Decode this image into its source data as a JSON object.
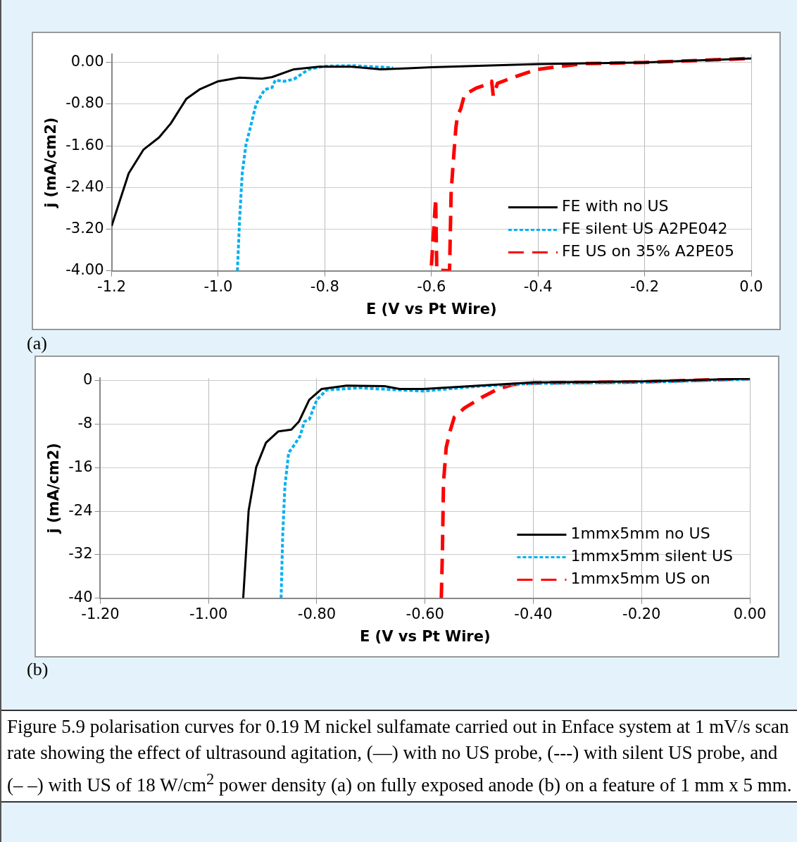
{
  "chart_data": [
    {
      "type": "line",
      "xlabel": "E (V vs Pt Wire)",
      "ylabel": "j (mA/cm2)",
      "xlim": [
        -1.2,
        0.0
      ],
      "ylim": [
        -4.0,
        0.16
      ],
      "xticks": [
        {
          "value": -1.2,
          "label": "-1.2"
        },
        {
          "value": -1.0,
          "label": "-1.0"
        },
        {
          "value": -0.8,
          "label": "-0.8"
        },
        {
          "value": -0.6,
          "label": "-0.6"
        },
        {
          "value": -0.4,
          "label": "-0.4"
        },
        {
          "value": -0.2,
          "label": "-0.2"
        },
        {
          "value": 0.0,
          "label": "0.0"
        }
      ],
      "yticks": [
        {
          "value": -4.0,
          "label": "-4.00"
        },
        {
          "value": -3.2,
          "label": "-3.20"
        },
        {
          "value": -2.4,
          "label": "-2.40"
        },
        {
          "value": -1.6,
          "label": "-1.60"
        },
        {
          "value": -0.8,
          "label": "-0.80"
        },
        {
          "value": 0.0,
          "label": "0.00"
        }
      ],
      "grid": true,
      "legend": "bottom right",
      "marker": "none",
      "annotations": [
        "(a)"
      ],
      "series": [
        {
          "name": "FE with no US",
          "color": "#000000",
          "line_style": "solid",
          "x": [
            -1.2,
            -1.168,
            -1.14,
            -1.111,
            -1.089,
            -1.06,
            -1.034,
            -1.0,
            -0.96,
            -0.918,
            -0.899,
            -0.858,
            -0.811,
            -0.75,
            -0.695,
            -0.644,
            -0.6,
            -0.4,
            -0.2,
            0.0
          ],
          "values": [
            -3.14,
            -2.13,
            -1.67,
            -1.44,
            -1.17,
            -0.7,
            -0.51,
            -0.36,
            -0.29,
            -0.31,
            -0.28,
            -0.13,
            -0.08,
            -0.08,
            -0.13,
            -0.11,
            -0.09,
            -0.03,
            0.0,
            0.08
          ]
        },
        {
          "name": "FE silent US A2PE042",
          "color": "#00b0f0",
          "line_style": "dotted",
          "x": [
            -0.964,
            -0.96,
            -0.955,
            -0.948,
            -0.941,
            -0.929,
            -0.913,
            -0.899,
            -0.893,
            -0.876,
            -0.858,
            -0.83,
            -0.801,
            -0.75,
            -0.672
          ],
          "values": [
            -4.0,
            -3.04,
            -2.13,
            -1.58,
            -1.3,
            -0.8,
            -0.52,
            -0.48,
            -0.34,
            -0.36,
            -0.32,
            -0.13,
            -0.07,
            -0.06,
            -0.1
          ]
        },
        {
          "name": "FE US on 35% A2PE05",
          "color": "#ff0000",
          "line_style": "dashed",
          "x": [
            -0.6,
            -0.592,
            -0.59,
            -0.566,
            -0.563,
            -0.558,
            -0.554,
            -0.551,
            -0.545,
            -0.538,
            -0.516,
            -0.498,
            -0.487,
            -0.484,
            -0.476,
            -0.453,
            -0.422,
            -0.4,
            -0.356,
            -0.31,
            -0.2,
            0.0
          ],
          "values": [
            -3.9,
            -2.61,
            -3.99,
            -4.0,
            -2.48,
            -1.77,
            -1.24,
            -1.02,
            -0.89,
            -0.62,
            -0.49,
            -0.43,
            -0.36,
            -0.64,
            -0.4,
            -0.31,
            -0.2,
            -0.13,
            -0.07,
            -0.02,
            0.0,
            0.08
          ]
        }
      ]
    },
    {
      "type": "line",
      "xlabel": "E (V vs Pt Wire)",
      "ylabel": "j (mA/cm2)",
      "xlim": [
        -1.2,
        0.0
      ],
      "ylim": [
        -40,
        0.5
      ],
      "xticks": [
        {
          "value": -1.2,
          "label": "-1.20"
        },
        {
          "value": -1.0,
          "label": "-1.00"
        },
        {
          "value": -0.8,
          "label": "-0.80"
        },
        {
          "value": -0.6,
          "label": "-0.60"
        },
        {
          "value": -0.4,
          "label": "-0.40"
        },
        {
          "value": -0.2,
          "label": "-0.20"
        },
        {
          "value": 0.0,
          "label": "0.00"
        }
      ],
      "yticks": [
        -40,
        -32,
        -24,
        -16,
        -8,
        0
      ],
      "grid": true,
      "legend": "bottom right",
      "marker": "none",
      "annotations": [
        "(b)",
        "Figure 5.9 polarisation curves for 0.19 M nickel sulfamate carried out in Enface system at 1 mV/s scan rate showing the effect of ultrasound agitation, (—) with no US probe, (---) with silent US probe, and (– –) with US of 18 W/cm$^{2}$ power density (a) on fully exposed anode (b) on a feature of 1 mm x 5 mm."
      ],
      "series": [
        {
          "name": "1mmx5mm no US",
          "color": "#000000",
          "line_style": "solid",
          "x": [
            -0.936,
            -0.926,
            -0.912,
            -0.894,
            -0.871,
            -0.847,
            -0.833,
            -0.814,
            -0.791,
            -0.745,
            -0.675,
            -0.647,
            -0.603,
            -0.5,
            -0.4,
            -0.199,
            0.0
          ],
          "values": [
            -40.0,
            -23.9,
            -15.9,
            -11.4,
            -9.3,
            -9.0,
            -7.5,
            -3.5,
            -1.5,
            -0.9,
            -1.0,
            -1.5,
            -1.5,
            -0.9,
            -0.3,
            -0.1,
            0.4
          ]
        },
        {
          "name": "1mmx5mm silent US",
          "color": "#00b0f0",
          "line_style": "dotted",
          "x": [
            -0.866,
            -0.863,
            -0.859,
            -0.852,
            -0.845,
            -0.831,
            -0.823,
            -0.814,
            -0.8,
            -0.782,
            -0.721,
            -0.647,
            -0.603,
            -0.5,
            -0.4,
            -0.2,
            0.0
          ],
          "values": [
            -40.0,
            -28.3,
            -19.4,
            -13.2,
            -12.3,
            -10.2,
            -7.5,
            -7.1,
            -3.5,
            -1.7,
            -1.3,
            -1.7,
            -1.9,
            -1.0,
            -0.5,
            -0.3,
            0.3
          ]
        },
        {
          "name": "1mmx5mm US on",
          "color": "#ff0000",
          "line_style": "dashed",
          "x": [
            -0.57,
            -0.568,
            -0.566,
            -0.561,
            -0.554,
            -0.546,
            -0.527,
            -0.496,
            -0.465,
            -0.438,
            -0.4,
            -0.2,
            0.0
          ],
          "values": [
            -40.0,
            -31.6,
            -18.8,
            -12.3,
            -9.3,
            -6.7,
            -5.0,
            -3.1,
            -1.5,
            -0.7,
            -0.4,
            -0.2,
            0.4
          ]
        }
      ]
    }
  ]
}
